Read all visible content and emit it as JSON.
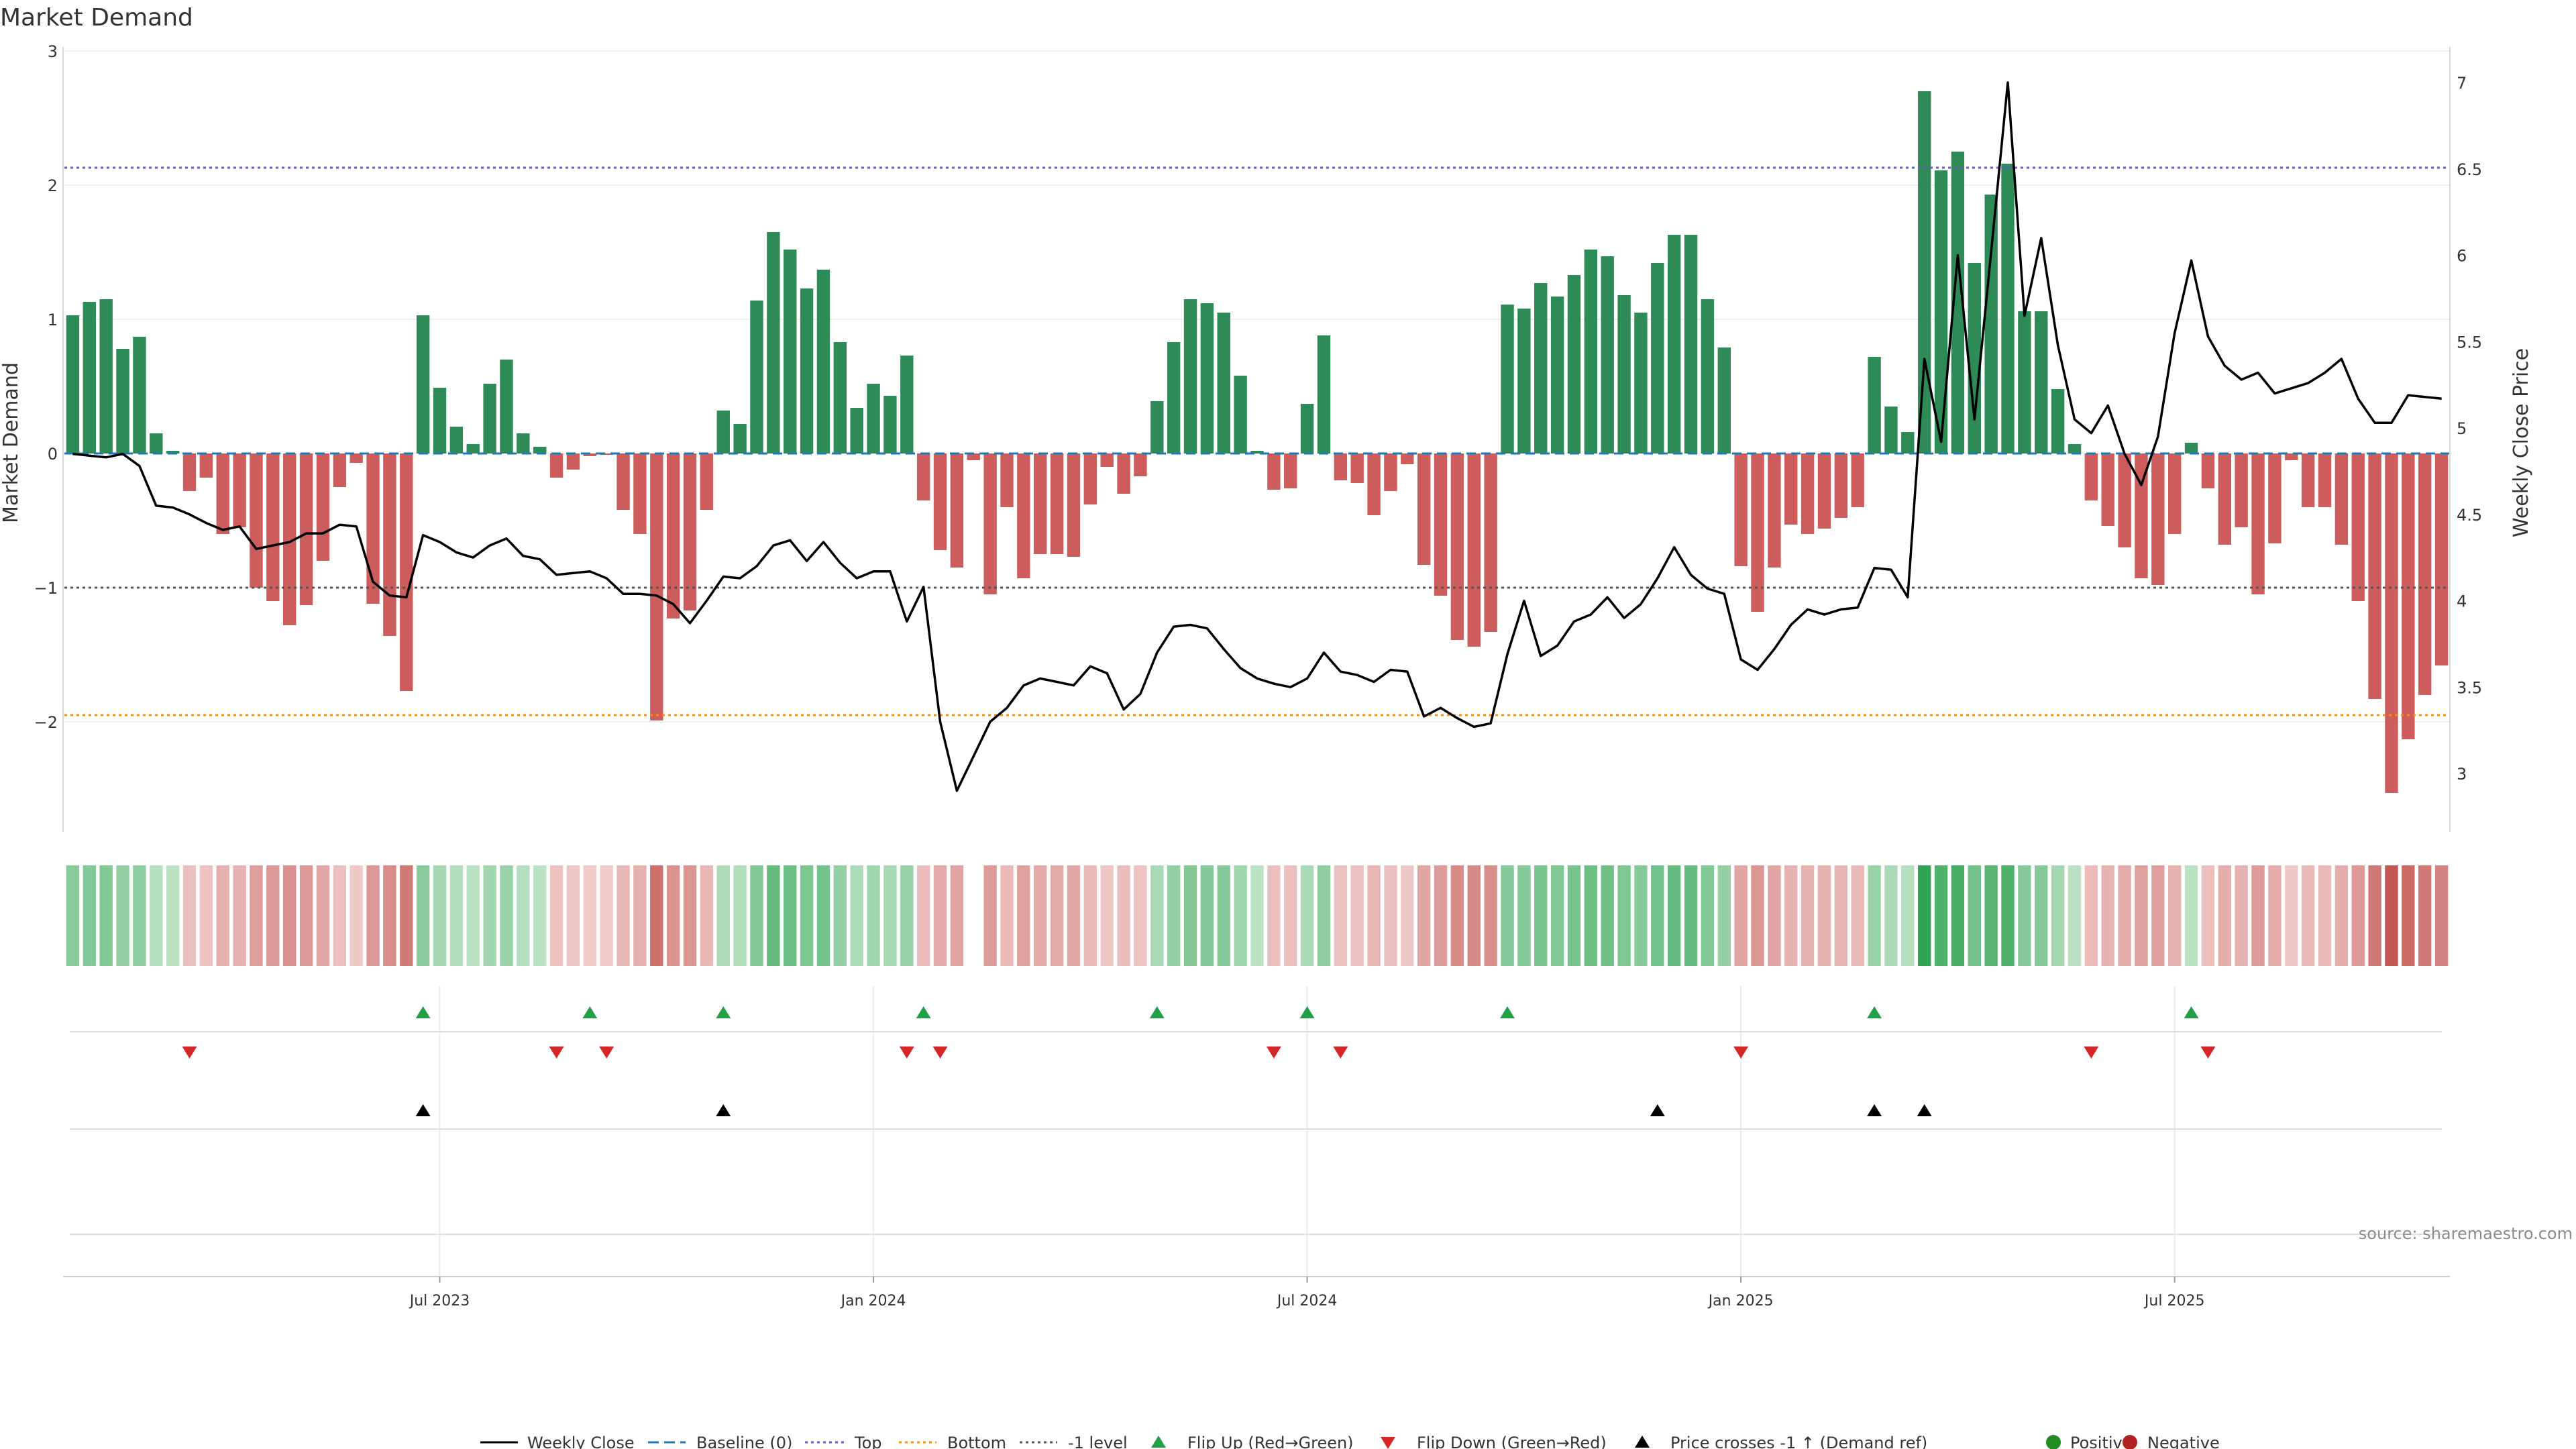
{
  "chart_data": {
    "type": "bar",
    "title": "Market Demand",
    "ylabel": "Market Demand",
    "y2label": "Weekly Close Price",
    "ylim": [
      -2.8,
      3.0
    ],
    "y2lim": [
      2.7,
      7.3
    ],
    "yticks": [
      3,
      2,
      1,
      0,
      -1,
      -2
    ],
    "ytick_labels": [
      "3",
      "2",
      "1",
      "0",
      "−1",
      "−2"
    ],
    "y2ticks": [
      7,
      6.5,
      6,
      5.5,
      5,
      4.5,
      4,
      3.5,
      3
    ],
    "y2tick_labels": [
      "7",
      "6.5",
      "6",
      "5.5",
      "5",
      "4.5",
      "4",
      "3.5",
      "3"
    ],
    "reference_lines": {
      "baseline": 0,
      "top": 2.13,
      "bottom": -1.95,
      "minus_one": -1
    },
    "series": [
      {
        "name": "Market Demand",
        "values": [
          1.03,
          1.13,
          1.15,
          0.78,
          0.87,
          0.15,
          0.02,
          -0.28,
          -0.18,
          -0.6,
          -0.55,
          -1.0,
          -1.1,
          -1.28,
          -1.13,
          -0.8,
          -0.25,
          -0.07,
          -1.12,
          -1.36,
          -1.77,
          1.03,
          0.49,
          0.2,
          0.07,
          0.52,
          0.7,
          0.15,
          0.05,
          -0.18,
          -0.12,
          -0.02,
          -0.01,
          -0.42,
          -0.6,
          -1.99,
          -1.23,
          -1.17,
          -0.42,
          0.32,
          0.22,
          1.14,
          1.65,
          1.52,
          1.23,
          1.37,
          0.83,
          0.34,
          0.52,
          0.43,
          0.73,
          -0.35,
          -0.72,
          -0.85,
          -0.05,
          -1.05,
          -0.4,
          -0.93,
          -0.75,
          -0.75,
          -0.77,
          -0.38,
          -0.1,
          -0.3,
          -0.17,
          0.39,
          0.83,
          1.15,
          1.12,
          1.05,
          0.58,
          0.02,
          -0.27,
          -0.26,
          0.37,
          0.88,
          -0.2,
          -0.22,
          -0.46,
          -0.28,
          -0.08,
          -0.83,
          -1.06,
          -1.39,
          -1.44,
          -1.33,
          1.11,
          1.08,
          1.27,
          1.17,
          1.33,
          1.52,
          1.47,
          1.18,
          1.05,
          1.42,
          1.63,
          1.63,
          1.15,
          0.79,
          -0.84,
          -1.18,
          -0.85,
          -0.53,
          -0.6,
          -0.56,
          -0.48,
          -0.4,
          0.72,
          0.35,
          0.16,
          2.7,
          2.11,
          2.25,
          1.42,
          1.93,
          2.16,
          1.06,
          1.06,
          0.48,
          0.07,
          -0.35,
          -0.54,
          -0.7,
          -0.93,
          -0.98,
          -0.6,
          0.08,
          -0.26,
          -0.68,
          -0.55,
          -1.05,
          -0.67,
          -0.05,
          -0.4,
          -0.4,
          -0.68,
          -1.1,
          -1.83,
          -2.53,
          -2.13,
          -1.8,
          -1.58
        ]
      },
      {
        "name": "Weekly Close",
        "values": [
          4.85,
          4.84,
          4.83,
          4.85,
          4.78,
          4.55,
          4.54,
          4.5,
          4.45,
          4.41,
          4.43,
          4.3,
          4.32,
          4.34,
          4.39,
          4.39,
          4.44,
          4.43,
          4.11,
          4.03,
          4.02,
          4.38,
          4.34,
          4.28,
          4.25,
          4.32,
          4.36,
          4.26,
          4.24,
          4.15,
          4.16,
          4.17,
          4.13,
          4.04,
          4.04,
          4.03,
          3.98,
          3.87,
          4.0,
          4.14,
          4.13,
          4.2,
          4.32,
          4.35,
          4.23,
          4.34,
          4.22,
          4.13,
          4.17,
          4.17,
          3.88,
          4.08,
          3.3,
          2.9,
          3.1,
          3.3,
          3.38,
          3.51,
          3.55,
          3.53,
          3.51,
          3.62,
          3.58,
          3.37,
          3.46,
          3.7,
          3.85,
          3.86,
          3.84,
          3.72,
          3.61,
          3.55,
          3.52,
          3.5,
          3.55,
          3.7,
          3.59,
          3.57,
          3.53,
          3.6,
          3.59,
          3.33,
          3.38,
          3.32,
          3.27,
          3.29,
          3.69,
          4.0,
          3.68,
          3.74,
          3.88,
          3.92,
          4.02,
          3.9,
          3.98,
          4.13,
          4.31,
          4.15,
          4.07,
          4.04,
          3.66,
          3.6,
          3.72,
          3.86,
          3.95,
          3.92,
          3.95,
          3.96,
          4.19,
          4.18,
          4.02,
          5.4,
          4.92,
          6.0,
          5.05,
          6.02,
          7.0,
          5.65,
          6.1,
          5.48,
          5.05,
          4.97,
          5.13,
          4.85,
          4.67,
          4.95,
          5.55,
          5.97,
          5.53,
          5.36,
          5.28,
          5.32,
          5.2,
          5.23,
          5.26,
          5.32,
          5.4,
          5.17,
          5.03,
          5.03,
          5.19,
          5.18,
          5.17
        ]
      }
    ],
    "x_axis": {
      "tick_labels": [
        "Jul 2023",
        "Jan 2024",
        "Jul 2024",
        "Jan 2025",
        "Jul 2025"
      ],
      "tick_positions": [
        22,
        48,
        74,
        100,
        126
      ]
    },
    "heat_strip": {
      "description_of_missing_weeks": [
        54
      ]
    },
    "flip_up": [
      21,
      31,
      39,
      51,
      65,
      74,
      86,
      108,
      127
    ],
    "flip_down": [
      7,
      29,
      32,
      50,
      52,
      72,
      76,
      100,
      121,
      128
    ],
    "price_crosses": [
      21,
      39,
      95,
      108,
      111
    ],
    "legend": [
      "Weekly Close",
      "Baseline (0)",
      "Top",
      "Bottom",
      "-1 level",
      "Flip Up (Red→Green)",
      "Flip Down (Green→Red)",
      "Price crosses -1 ↑ (Demand ref)",
      "Positive",
      "Negative"
    ],
    "source": "source: sharemaestro.com"
  },
  "colors": {
    "positive": "#2e8b57",
    "negative": "#cd5c5c",
    "flip_up": "#21a046",
    "flip_down": "#d62728",
    "price": "#000000",
    "baseline": "#1f77b4",
    "top": "#6a5acd",
    "bottom": "#ff8c00",
    "minus_one": "#555555",
    "legend_positive": "#228b22",
    "legend_negative": "#b22222"
  }
}
